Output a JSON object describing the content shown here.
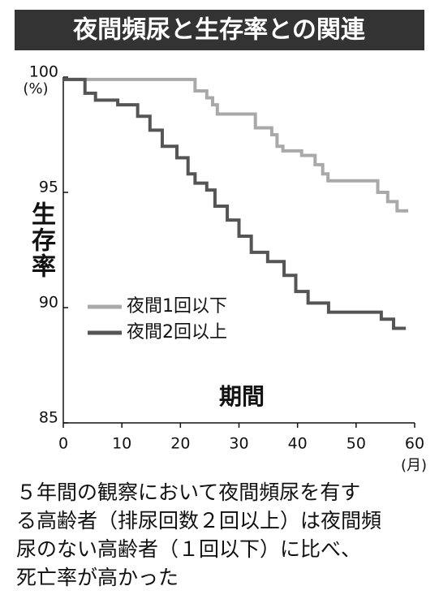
{
  "chart_data": {
    "type": "line",
    "step": "post",
    "title": "夜間頻尿と生存率との関連",
    "y_label": "生存率",
    "x_label": "期間",
    "y_unit": "(%)",
    "x_unit": "(月)",
    "xlim": [
      0,
      60
    ],
    "xticks": [
      0,
      10,
      20,
      30,
      40,
      50,
      60
    ],
    "ylim": [
      85,
      100
    ],
    "yticks": [
      85,
      90,
      95,
      100
    ],
    "series": [
      {
        "name": "夜間1回以下",
        "color": "#a9a9a9",
        "x": [
          0,
          22.5,
          24.5,
          25.5,
          26.3,
          32.8,
          35.6,
          36.5,
          37.5,
          40.7,
          43,
          44.3,
          45.2,
          53.7,
          55.4,
          57,
          58.9
        ],
        "values": [
          99.9,
          99.4,
          99.1,
          98.8,
          98.4,
          97.8,
          97.5,
          97.0,
          96.8,
          96.6,
          96.2,
          95.8,
          95.5,
          95.0,
          94.6,
          94.2,
          94.2
        ]
      },
      {
        "name": "夜間2回以上",
        "color": "#555555",
        "x": [
          0,
          3.7,
          5.5,
          9.3,
          12.7,
          14.8,
          16.9,
          19.4,
          21.3,
          22.5,
          24.5,
          25.9,
          28,
          30,
          32.1,
          34.9,
          37.7,
          39.7,
          41.8,
          45.3,
          54.3,
          56.4,
          58.5
        ],
        "values": [
          99.9,
          99.3,
          99.0,
          98.8,
          98.3,
          97.7,
          97.0,
          96.5,
          95.8,
          95.4,
          95.1,
          94.4,
          93.8,
          93.1,
          92.4,
          92.0,
          91.4,
          90.7,
          90.2,
          89.8,
          89.5,
          89.1,
          89.1
        ]
      }
    ],
    "caption": [
      "５年間の観察において夜間頻尿を有す",
      "る高齢者（排尿回数２回以上）は夜間頻",
      "尿のない高齢者（１回以下）に比べ、",
      "死亡率が高かった"
    ]
  }
}
